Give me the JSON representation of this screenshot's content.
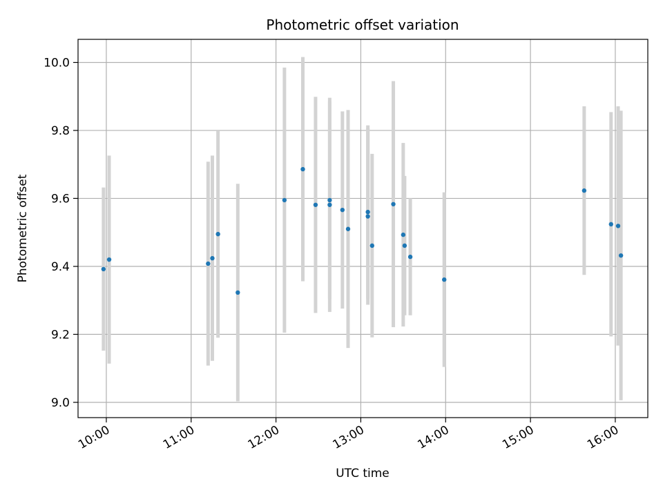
{
  "chart_data": {
    "type": "scatter",
    "title": "Photometric offset variation",
    "xlabel": "UTC time",
    "ylabel": "Photometric offset",
    "x_ticks": [
      "10:00",
      "11:00",
      "12:00",
      "13:00",
      "14:00",
      "15:00",
      "16:00"
    ],
    "y_ticks": [
      "9.0",
      "9.2",
      "9.4",
      "9.6",
      "9.8",
      "10.0"
    ],
    "xlim": [
      "09:40",
      "16:23"
    ],
    "ylim": [
      8.955,
      10.068
    ],
    "grid": true,
    "colors": {
      "point": "#1f77b4",
      "errorbar": "#d3d3d3",
      "grid": "#b0b0b0"
    },
    "points": [
      {
        "time": "09:58",
        "y": 9.392,
        "yerr": 0.24
      },
      {
        "time": "10:02",
        "y": 9.42,
        "yerr": 0.306
      },
      {
        "time": "11:12",
        "y": 9.408,
        "yerr": 0.3
      },
      {
        "time": "11:15",
        "y": 9.424,
        "yerr": 0.302
      },
      {
        "time": "11:19",
        "y": 9.495,
        "yerr": 0.305
      },
      {
        "time": "11:33",
        "y": 9.323,
        "yerr": 0.32
      },
      {
        "time": "12:06",
        "y": 9.595,
        "yerr": 0.39
      },
      {
        "time": "12:19",
        "y": 9.686,
        "yerr": 0.33
      },
      {
        "time": "12:28",
        "y": 9.581,
        "yerr": 0.318
      },
      {
        "time": "12:38",
        "y": 9.595,
        "yerr": 0.29
      },
      {
        "time": "12:38",
        "y": 9.581,
        "yerr": 0.315
      },
      {
        "time": "12:47",
        "y": 9.566,
        "yerr": 0.29
      },
      {
        "time": "12:51",
        "y": 9.51,
        "yerr": 0.35
      },
      {
        "time": "13:05",
        "y": 9.56,
        "yerr": 0.255
      },
      {
        "time": "13:05",
        "y": 9.547,
        "yerr": 0.26
      },
      {
        "time": "13:08",
        "y": 9.461,
        "yerr": 0.27
      },
      {
        "time": "13:23",
        "y": 9.583,
        "yerr": 0.362
      },
      {
        "time": "13:30",
        "y": 9.493,
        "yerr": 0.27
      },
      {
        "time": "13:31",
        "y": 9.461,
        "yerr": 0.205
      },
      {
        "time": "13:35",
        "y": 9.428,
        "yerr": 0.172
      },
      {
        "time": "13:59",
        "y": 9.361,
        "yerr": 0.257
      },
      {
        "time": "15:38",
        "y": 9.623,
        "yerr": 0.248
      },
      {
        "time": "15:57",
        "y": 9.524,
        "yerr": 0.33
      },
      {
        "time": "16:02",
        "y": 9.519,
        "yerr": 0.352
      },
      {
        "time": "16:04",
        "y": 9.432,
        "yerr": 0.426
      }
    ]
  }
}
